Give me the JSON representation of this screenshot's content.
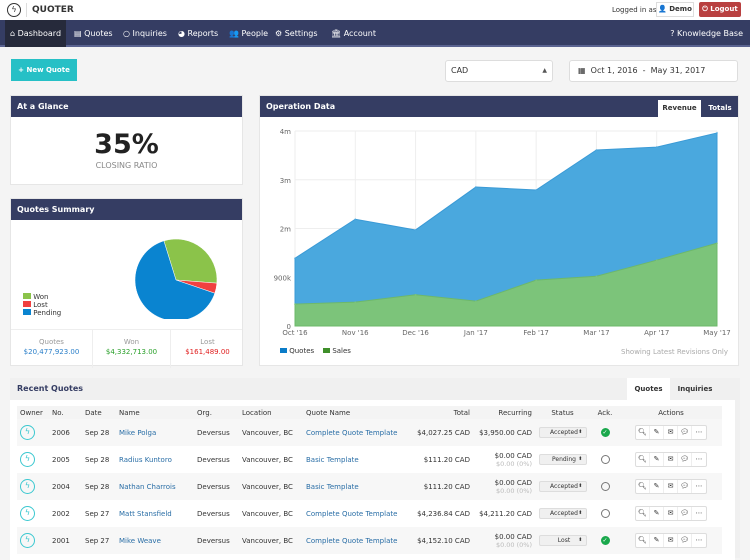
{
  "app": {
    "brand": "QUOTER",
    "logged_in_label": "Logged in as:",
    "user": "Demo",
    "logout": "Logout"
  },
  "nav": {
    "items": [
      {
        "label": "Dashboard",
        "icon": "home-icon"
      },
      {
        "label": "Quotes",
        "icon": "document-icon"
      },
      {
        "label": "Inquiries",
        "icon": "chat-bubble-icon"
      },
      {
        "label": "Reports",
        "icon": "pie-chart-icon"
      },
      {
        "label": "People",
        "icon": "users-icon"
      },
      {
        "label": "Settings",
        "icon": "gears-icon"
      },
      {
        "label": "Account",
        "icon": "bank-icon"
      }
    ],
    "active": "Dashboard",
    "knowledge_base": "Knowledge Base"
  },
  "toolbar": {
    "new_quote": "New Quote",
    "currency": "CAD",
    "date_start": "Oct 1, 2016",
    "date_sep": "-",
    "date_end": "May 31, 2017"
  },
  "glance": {
    "title": "At a Glance",
    "ratio": "35%",
    "ratio_label": "CLOSING RATIO"
  },
  "summary": {
    "title": "Quotes Summary",
    "legend": [
      "Won",
      "Lost",
      "Pending"
    ],
    "stats": [
      {
        "label": "Quotes",
        "value": "$20,477,923.00",
        "color": "#2a7fc9"
      },
      {
        "label": "Won",
        "value": "$4,332,713.00",
        "color": "#2aa02a"
      },
      {
        "label": "Lost",
        "value": "$161,489.00",
        "color": "#e02020"
      }
    ]
  },
  "operation": {
    "title": "Operation Data",
    "tabs": [
      "Revenue",
      "Totals"
    ],
    "active_tab": "Revenue",
    "note": "Showing Latest Revisions Only"
  },
  "chart_data": [
    {
      "type": "area",
      "categories": [
        "Oct '16",
        "Nov '16",
        "Dec '16",
        "Jan '17",
        "Feb '17",
        "Mar '17",
        "Apr '17",
        "May '17"
      ],
      "yticks": [
        "0",
        "900k",
        "2m",
        "3m",
        "4m"
      ],
      "ylim": [
        0,
        4000000
      ],
      "grid": true,
      "legend": "bottom-left",
      "series": [
        {
          "name": "Quotes",
          "color": "#4aa8de",
          "values": [
            1390000,
            2190000,
            1970000,
            2850000,
            2790000,
            3610000,
            3670000,
            3960000
          ]
        },
        {
          "name": "Sales",
          "color": "#7cc47a",
          "values": [
            450000,
            490000,
            640000,
            510000,
            940000,
            1020000,
            1350000,
            1700000
          ]
        }
      ]
    },
    {
      "type": "pie",
      "categories": [
        "Won",
        "Lost",
        "Pending"
      ],
      "values_percent": [
        31,
        4,
        65
      ],
      "colors": [
        "#8bc34a",
        "#f04040",
        "#0a84d0"
      ],
      "legend": "bottom-left"
    }
  ],
  "recent": {
    "title": "Recent Quotes",
    "tabs": [
      "Quotes",
      "Inquiries"
    ],
    "active_tab": "Quotes",
    "columns": [
      "Owner",
      "No.",
      "Date",
      "Name",
      "Org.",
      "Location",
      "Quote Name",
      "Total",
      "Recurring",
      "Status",
      "Ack.",
      "Actions"
    ],
    "rows": [
      {
        "no": "2006",
        "date": "Sep 28",
        "name": "Mike Polga",
        "org": "Deversus",
        "location": "Vancouver, BC",
        "quote": "Complete Quote Template",
        "total": "$4,027.25 CAD",
        "recurring": "$3,950.00 CAD",
        "recurring_sub": "",
        "status": "Accepted",
        "ack": true
      },
      {
        "no": "2005",
        "date": "Sep 28",
        "name": "Radius Kuntoro",
        "org": "Deversus",
        "location": "Vancouver, BC",
        "quote": "Basic Template",
        "total": "$111.20 CAD",
        "recurring": "$0.00 CAD",
        "recurring_sub": "$0.00 (0%)",
        "status": "Pending",
        "ack": false
      },
      {
        "no": "2004",
        "date": "Sep 28",
        "name": "Nathan Charrois",
        "org": "Deversus",
        "location": "Vancouver, BC",
        "quote": "Basic Template",
        "total": "$111.20 CAD",
        "recurring": "$0.00 CAD",
        "recurring_sub": "$0.00 (0%)",
        "status": "Accepted",
        "ack": false
      },
      {
        "no": "2002",
        "date": "Sep 27",
        "name": "Matt Stansfield",
        "org": "Deversus",
        "location": "Vancouver, BC",
        "quote": "Complete Quote Template",
        "total": "$4,236.84 CAD",
        "recurring": "$4,211.20 CAD",
        "recurring_sub": "",
        "status": "Accepted",
        "ack": false
      },
      {
        "no": "2001",
        "date": "Sep 27",
        "name": "Mike Weave",
        "org": "Deversus",
        "location": "Vancouver, BC",
        "quote": "Complete Quote Template",
        "total": "$4,152.10 CAD",
        "recurring": "$0.00 CAD",
        "recurring_sub": "$0.00 (0%)",
        "status": "Lost",
        "ack": true
      }
    ]
  }
}
